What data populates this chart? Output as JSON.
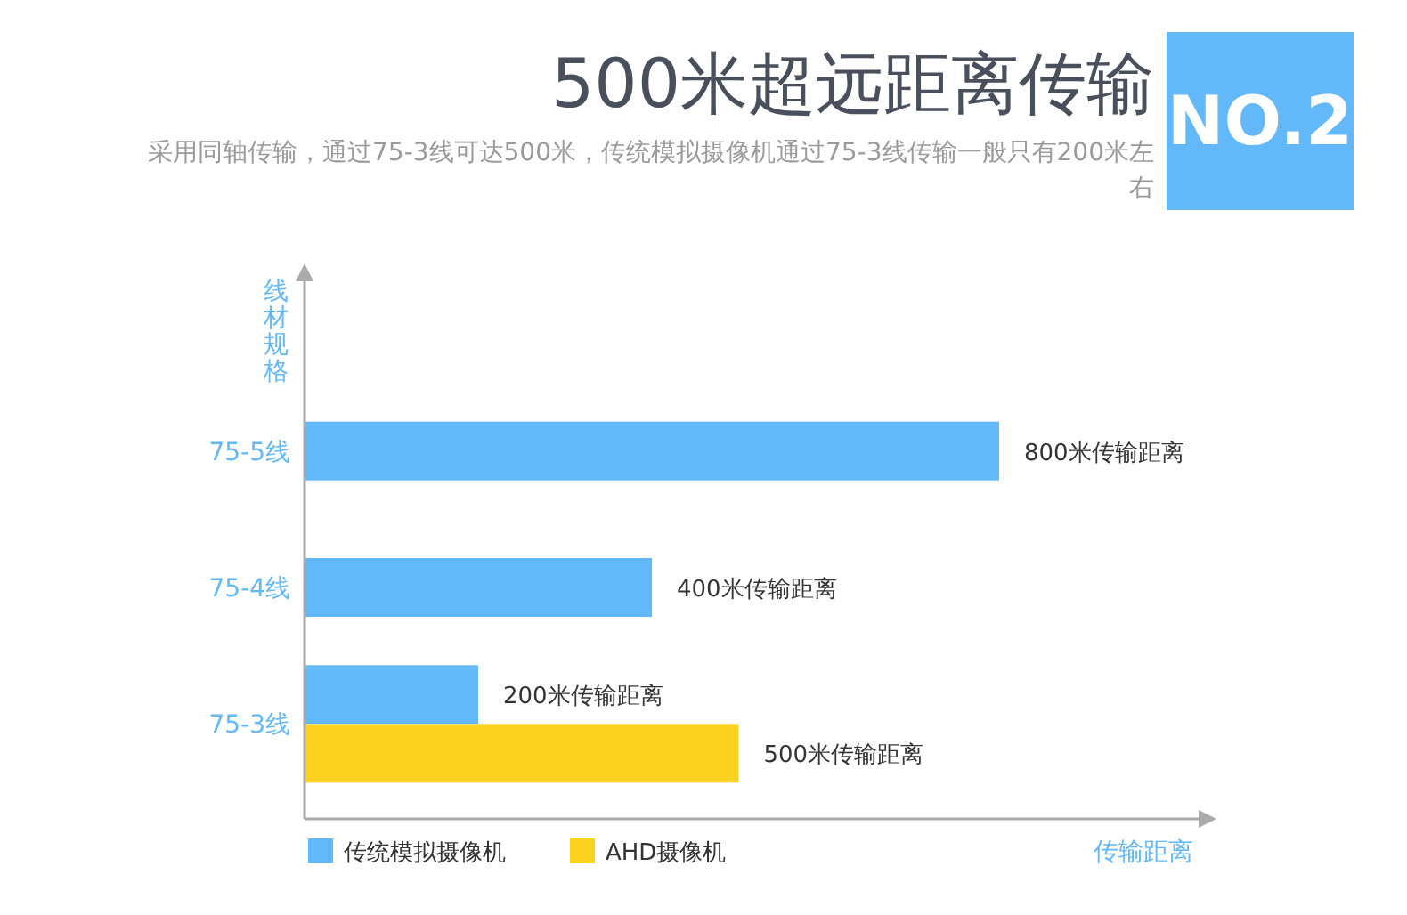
{
  "chart_data": {
    "type": "bar",
    "orientation": "horizontal",
    "title": "500米超远距离传输",
    "subtitle": "采用同轴传输，通过75-3线可达500米，传统模拟摄像机通过75-3线传输一般只有200米左右",
    "annotations": [
      "NO.2"
    ],
    "ylabel": "线材规格",
    "xlabel": "传输距离",
    "categories": [
      "75-5线",
      "75-4线",
      "75-3线"
    ],
    "series": [
      {
        "name": "传统模拟摄像机",
        "color": "#63b8fa",
        "values": [
          800,
          400,
          200
        ],
        "value_labels": [
          "800米传输距离",
          "400米传输距离",
          "200米传输距离"
        ]
      },
      {
        "name": "AHD摄像机",
        "color": "#fcd21e",
        "values": [
          null,
          null,
          500
        ],
        "value_labels": [
          null,
          null,
          "500米传输距离"
        ]
      }
    ],
    "legend": "bottom"
  }
}
